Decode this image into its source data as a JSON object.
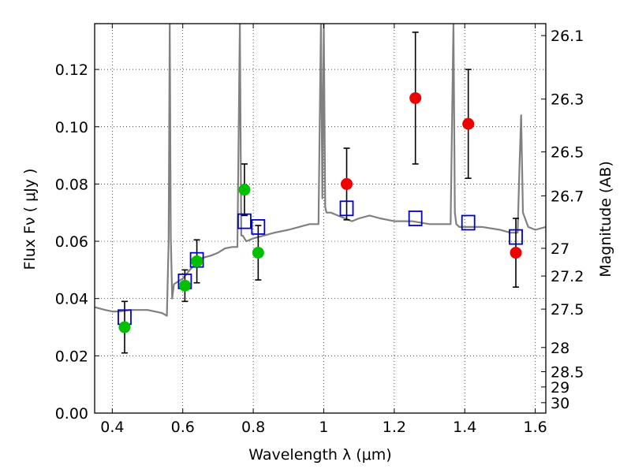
{
  "chart_data": {
    "type": "scatter",
    "xlabel": "Wavelength  λ (μm)",
    "ylabel": "Flux  Fν ( μJy )",
    "y2label": "Magnitude (AB)",
    "xlim": [
      0.35,
      1.63
    ],
    "ylim": [
      0.0,
      0.136
    ],
    "x_ticks": [
      "0.4",
      "0.6",
      "0.8",
      "1",
      "1.2",
      "1.4",
      "1.6"
    ],
    "x_tick_values": [
      0.4,
      0.6,
      0.8,
      1.0,
      1.2,
      1.4,
      1.6
    ],
    "y_ticks": [
      "0.00",
      "0.02",
      "0.04",
      "0.06",
      "0.08",
      "0.10",
      "0.12"
    ],
    "y_tick_values": [
      0.0,
      0.02,
      0.04,
      0.06,
      0.08,
      0.1,
      0.12
    ],
    "y2_ticks": [
      "26.1",
      "26.3",
      "26.5",
      "26.7",
      "27",
      "27.2",
      "27.5",
      "28",
      "28.5",
      "29",
      "30"
    ],
    "y2_tick_values": [
      26.1,
      26.3,
      26.5,
      26.7,
      27.0,
      27.2,
      27.5,
      28.0,
      28.5,
      29.0,
      30.0
    ],
    "grid": true,
    "colors": {
      "spectrum": "#808080",
      "green_points": "#00c000",
      "red_points": "#ee0000",
      "model_squares": "#0000cc",
      "errorbar": "#000000"
    },
    "series": [
      {
        "marker": "circle",
        "color": "#00c000",
        "x": [
          0.435,
          0.606,
          0.64,
          0.775,
          0.814
        ],
        "y": [
          0.03,
          0.0445,
          0.053,
          0.078,
          0.056
        ],
        "yerr": [
          0.009,
          0.0055,
          0.0075,
          0.009,
          0.0095
        ]
      },
      {
        "marker": "circle",
        "color": "#ee0000",
        "x": [
          1.065,
          1.26,
          1.41,
          1.545
        ],
        "y": [
          0.08,
          0.11,
          0.101,
          0.056
        ],
        "yerr": [
          0.0125,
          0.023,
          0.019,
          0.012
        ]
      },
      {
        "marker": "square-open",
        "color": "#0000cc",
        "x": [
          0.435,
          0.606,
          0.64,
          0.775,
          0.814,
          1.065,
          1.26,
          1.41,
          1.545
        ],
        "y": [
          0.0335,
          0.046,
          0.0535,
          0.067,
          0.065,
          0.0715,
          0.068,
          0.0665,
          0.0615
        ]
      },
      {
        "marker": "line",
        "color": "#808080",
        "x": [
          0.35,
          0.38,
          0.4,
          0.42,
          0.45,
          0.48,
          0.5,
          0.52,
          0.54,
          0.555,
          0.56,
          0.563,
          0.566,
          0.57,
          0.575,
          0.6,
          0.62,
          0.65,
          0.68,
          0.7,
          0.72,
          0.74,
          0.755,
          0.762,
          0.766,
          0.77,
          0.78,
          0.8,
          0.83,
          0.86,
          0.9,
          0.93,
          0.96,
          0.985,
          0.992,
          0.996,
          1.0,
          1.004,
          1.008,
          1.02,
          1.04,
          1.06,
          1.08,
          1.1,
          1.13,
          1.16,
          1.2,
          1.25,
          1.3,
          1.33,
          1.36,
          1.368,
          1.372,
          1.376,
          1.385,
          1.4,
          1.45,
          1.5,
          1.53,
          1.55,
          1.555,
          1.56,
          1.565,
          1.58,
          1.6,
          1.63
        ],
        "y": [
          0.037,
          0.036,
          0.0355,
          0.0355,
          0.036,
          0.036,
          0.036,
          0.0355,
          0.035,
          0.034,
          0.06,
          0.136,
          0.062,
          0.04,
          0.045,
          0.047,
          0.05,
          0.054,
          0.055,
          0.056,
          0.0575,
          0.058,
          0.058,
          0.136,
          0.062,
          0.062,
          0.06,
          0.061,
          0.062,
          0.063,
          0.064,
          0.065,
          0.066,
          0.066,
          0.136,
          0.075,
          0.136,
          0.072,
          0.07,
          0.07,
          0.069,
          0.068,
          0.067,
          0.068,
          0.069,
          0.068,
          0.067,
          0.067,
          0.066,
          0.066,
          0.066,
          0.136,
          0.07,
          0.066,
          0.065,
          0.065,
          0.065,
          0.064,
          0.063,
          0.063,
          0.085,
          0.104,
          0.07,
          0.065,
          0.064,
          0.065
        ]
      }
    ]
  }
}
